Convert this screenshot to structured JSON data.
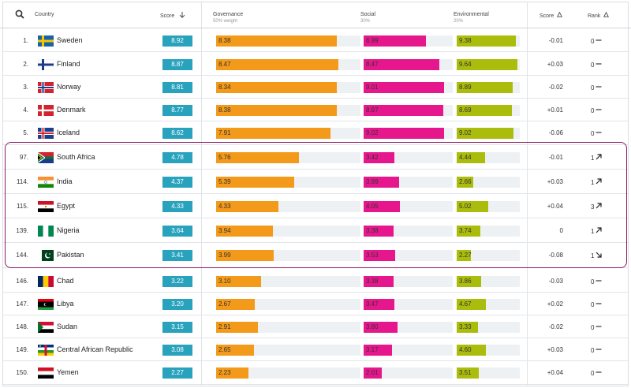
{
  "header": {
    "country": "Country",
    "score": "Score",
    "score_icon": "arrow-down-icon",
    "governance": "Governance",
    "governance_weight": "50% weight",
    "social": "Social",
    "social_weight": "30%",
    "environmental": "Environmental",
    "environmental_weight": "20%",
    "score_change": "Score",
    "rank_change": "Rank",
    "delta_icon": "delta-icon"
  },
  "colors": {
    "score": "#29a3bd",
    "governance": "#f39a1a",
    "social": "#e6178c",
    "environmental": "#abbd0c",
    "highlight_border": "#8b1c63"
  },
  "rows": [
    {
      "rank": "1.",
      "country": "Sweden",
      "flag": "sweden-flag",
      "score": "8.92",
      "gov": "8.38",
      "soc": "6.99",
      "env": "9.38",
      "score_change": "-0.01",
      "rank_change": "0",
      "rank_icon": "dash-icon"
    },
    {
      "rank": "2.",
      "country": "Finland",
      "flag": "finland-flag",
      "score": "8.87",
      "gov": "8.47",
      "soc": "8.47",
      "env": "9.64",
      "score_change": "+0.03",
      "rank_change": "0",
      "rank_icon": "dash-icon"
    },
    {
      "rank": "3.",
      "country": "Norway",
      "flag": "norway-flag",
      "score": "8.81",
      "gov": "8.34",
      "soc": "9.01",
      "env": "8.89",
      "score_change": "-0.02",
      "rank_change": "0",
      "rank_icon": "dash-icon"
    },
    {
      "rank": "4.",
      "country": "Denmark",
      "flag": "denmark-flag",
      "score": "8.77",
      "gov": "8.38",
      "soc": "8.97",
      "env": "8.69",
      "score_change": "+0.01",
      "rank_change": "0",
      "rank_icon": "dash-icon"
    },
    {
      "rank": "5.",
      "country": "Iceland",
      "flag": "iceland-flag",
      "score": "8.62",
      "gov": "7.91",
      "soc": "9.02",
      "env": "9.02",
      "score_change": "-0.06",
      "rank_change": "0",
      "rank_icon": "dash-icon"
    },
    {
      "rank": "97.",
      "country": "South Africa",
      "flag": "south-africa-flag",
      "score": "4.78",
      "gov": "5.76",
      "soc": "3.42",
      "env": "4.44",
      "score_change": "-0.01",
      "rank_change": "1",
      "rank_icon": "arrow-up-right-icon"
    },
    {
      "rank": "114.",
      "country": "India",
      "flag": "india-flag",
      "score": "4.37",
      "gov": "5.39",
      "soc": "3.99",
      "env": "2.66",
      "score_change": "+0.03",
      "rank_change": "1",
      "rank_icon": "arrow-up-right-icon"
    },
    {
      "rank": "115.",
      "country": "Egypt",
      "flag": "egypt-flag",
      "score": "4.33",
      "gov": "4.33",
      "soc": "4.05",
      "env": "5.02",
      "score_change": "+0.04",
      "rank_change": "3",
      "rank_icon": "arrow-up-right-icon"
    },
    {
      "rank": "139.",
      "country": "Nigeria",
      "flag": "nigeria-flag",
      "score": "3.64",
      "gov": "3.94",
      "soc": "3.38",
      "env": "3.74",
      "score_change": "0",
      "rank_change": "1",
      "rank_icon": "arrow-up-right-icon"
    },
    {
      "rank": "144.",
      "country": "Pakistan",
      "flag": "pakistan-flag",
      "score": "3.41",
      "gov": "3.99",
      "soc": "3.53",
      "env": "2.27",
      "score_change": "-0.08",
      "rank_change": "1",
      "rank_icon": "arrow-down-right-icon"
    },
    {
      "rank": "146.",
      "country": "Chad",
      "flag": "chad-flag",
      "score": "3.22",
      "gov": "3.10",
      "soc": "3.38",
      "env": "3.86",
      "score_change": "-0.03",
      "rank_change": "0",
      "rank_icon": "dash-icon"
    },
    {
      "rank": "147.",
      "country": "Libya",
      "flag": "libya-flag",
      "score": "3.20",
      "gov": "2.67",
      "soc": "3.47",
      "env": "4.67",
      "score_change": "+0.02",
      "rank_change": "0",
      "rank_icon": "dash-icon"
    },
    {
      "rank": "148.",
      "country": "Sudan",
      "flag": "sudan-flag",
      "score": "3.15",
      "gov": "2.91",
      "soc": "3.80",
      "env": "3.33",
      "score_change": "-0.02",
      "rank_change": "0",
      "rank_icon": "dash-icon"
    },
    {
      "rank": "149.",
      "country": "Central African Republic",
      "flag": "central-african-republic-flag",
      "score": "3.08",
      "gov": "2.65",
      "soc": "3.17",
      "env": "4.60",
      "score_change": "+0.03",
      "rank_change": "0",
      "rank_icon": "dash-icon"
    },
    {
      "rank": "150.",
      "country": "Yemen",
      "flag": "yemen-flag",
      "score": "2.27",
      "gov": "2.23",
      "soc": "2.01",
      "env": "3.51",
      "score_change": "+0.04",
      "rank_change": "0",
      "rank_icon": "dash-icon"
    }
  ]
}
